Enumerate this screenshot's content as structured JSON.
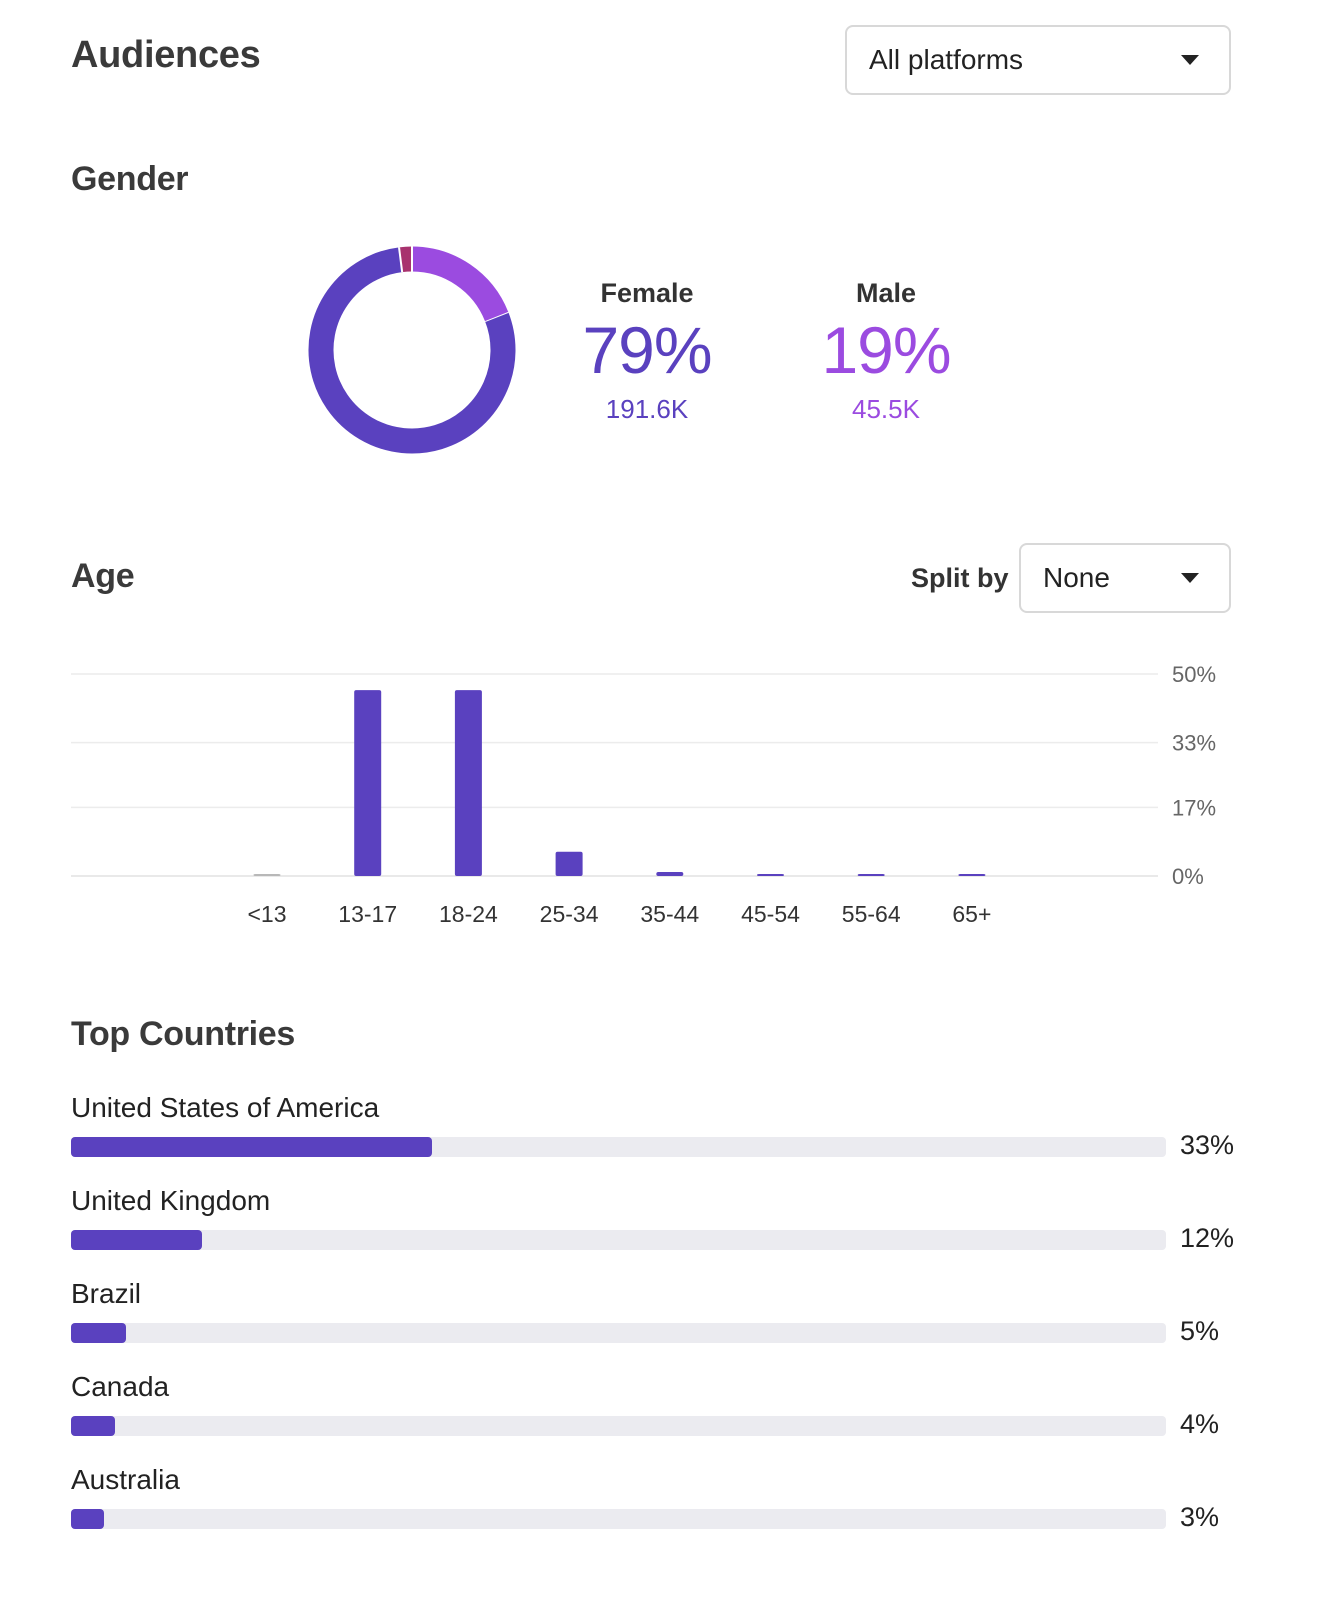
{
  "header": {
    "title": "Audiences",
    "platform_select": "All platforms"
  },
  "gender": {
    "title": "Gender",
    "female": {
      "label": "Female",
      "percent": "79%",
      "count": "191.6K",
      "share": 79
    },
    "male": {
      "label": "Male",
      "percent": "19%",
      "count": "45.5K",
      "share": 19
    },
    "other_share": 2,
    "colors": {
      "female": "#5a41bf",
      "male": "#9b4be0",
      "other": "#a8326e"
    }
  },
  "age": {
    "title": "Age",
    "split_label": "Split by",
    "split_value": "None"
  },
  "countries": {
    "title": "Top Countries",
    "items": [
      {
        "name": "United States of America",
        "percent": "33%",
        "value": 33
      },
      {
        "name": "United Kingdom",
        "percent": "12%",
        "value": 12
      },
      {
        "name": "Brazil",
        "percent": "5%",
        "value": 5
      },
      {
        "name": "Canada",
        "percent": "4%",
        "value": 4
      },
      {
        "name": "Australia",
        "percent": "3%",
        "value": 3
      }
    ]
  },
  "chart_data": {
    "type": "bar",
    "title": "Age",
    "categories": [
      "<13",
      "13-17",
      "18-24",
      "25-34",
      "35-44",
      "45-54",
      "55-64",
      "65+"
    ],
    "values": [
      0.3,
      46,
      46,
      6,
      1,
      0.3,
      0.3,
      0.3
    ],
    "y_ticks": [
      "50%",
      "33%",
      "17%",
      "0%"
    ],
    "y_tick_values": [
      50,
      33,
      17,
      0
    ],
    "ylim": [
      0,
      50
    ],
    "xlabel": "",
    "ylabel": "",
    "bar_color": "#5a41bf",
    "muted_color": "#b8b8b8"
  }
}
